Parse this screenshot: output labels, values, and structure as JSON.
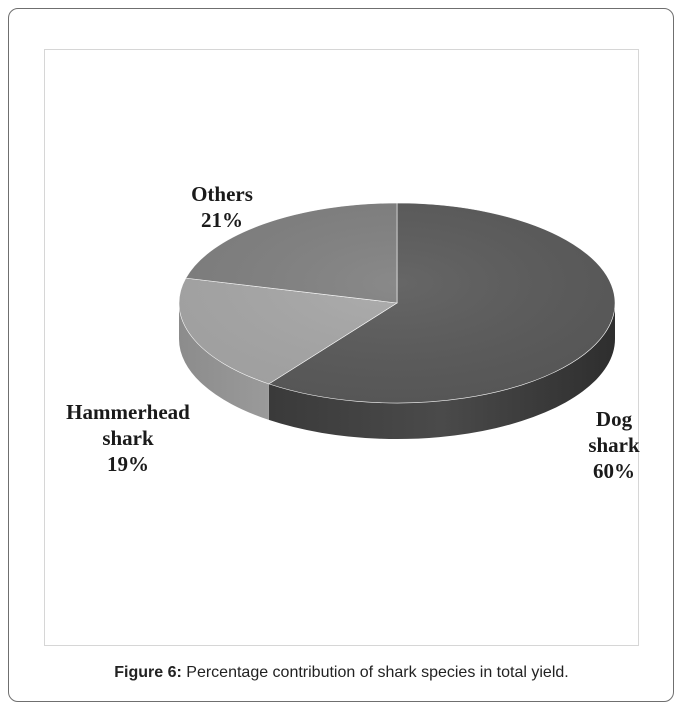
{
  "chart_data": {
    "type": "pie",
    "style": "3d",
    "slices": [
      {
        "name": "Dog shark",
        "label_lines": [
          "Dog",
          "shark"
        ],
        "value": 60,
        "value_label": "60%",
        "color": "#595959"
      },
      {
        "name": "Hammerhead shark",
        "label_lines": [
          "Hammerhead",
          "shark"
        ],
        "value": 19,
        "value_label": "19%",
        "color": "#a6a6a6"
      },
      {
        "name": "Others",
        "label_lines": [
          "Others"
        ],
        "value": 21,
        "value_label": "21%",
        "color": "#7f7f7f"
      }
    ]
  },
  "caption": {
    "label": "Figure 6:",
    "text": " Percentage contribution of shark species in total yield."
  }
}
